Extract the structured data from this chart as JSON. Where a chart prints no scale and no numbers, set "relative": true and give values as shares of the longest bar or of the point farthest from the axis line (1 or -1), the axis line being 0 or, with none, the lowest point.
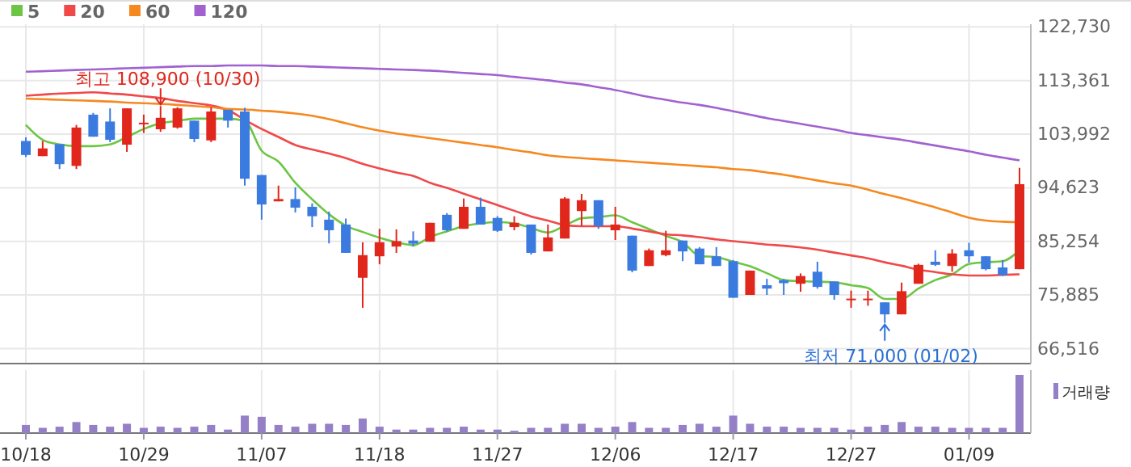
{
  "chart_data": [
    {
      "type": "candlestick",
      "legend": "top left",
      "grid": true,
      "tick_labels": "y",
      "categories": [
        null,
        null,
        null,
        null,
        null,
        null,
        null,
        null,
        null,
        null,
        null,
        null,
        null,
        null,
        null,
        null,
        null,
        null,
        null,
        null,
        null,
        null,
        null,
        null,
        null,
        null,
        null,
        null,
        null,
        null,
        null,
        null,
        null,
        null,
        null,
        null,
        null,
        null,
        null,
        null,
        null,
        null,
        null,
        null,
        null,
        null,
        null,
        null,
        null,
        null,
        null,
        null,
        null,
        null,
        null,
        null,
        null,
        null,
        null,
        null
      ],
      "ohlc": [
        [
          102800,
          103450,
          100000,
          100350
        ],
        [
          100150,
          102800,
          100150,
          101500
        ],
        [
          102250,
          102250,
          97900,
          98750
        ],
        [
          98450,
          105600,
          97900,
          105150
        ],
        [
          107400,
          107700,
          103550,
          103550
        ],
        [
          106200,
          108500,
          102600,
          103000
        ],
        [
          102150,
          108500,
          100900,
          108500
        ],
        [
          105800,
          107400,
          104200,
          106000
        ],
        [
          104850,
          108900,
          104400,
          106850
        ],
        [
          105150,
          108700,
          104950,
          108500
        ],
        [
          106350,
          106350,
          102600,
          103150
        ],
        [
          102900,
          108700,
          102600,
          107950
        ],
        [
          108250,
          108250,
          105150,
          106350
        ],
        [
          107950,
          108600,
          95000,
          96200
        ],
        [
          96850,
          96850,
          89050,
          91700
        ],
        [
          92250,
          95000,
          92250,
          92650
        ],
        [
          92650,
          94700,
          90300,
          91150
        ],
        [
          91300,
          91900,
          87750,
          89650
        ],
        [
          89050,
          90450,
          84900,
          87200
        ],
        [
          88200,
          89250,
          83250,
          83250
        ],
        [
          78900,
          85100,
          73650,
          82850
        ],
        [
          82650,
          87450,
          81250,
          85100
        ],
        [
          84350,
          87350,
          83250,
          85300
        ],
        [
          85400,
          87000,
          84350,
          84850
        ],
        [
          85200,
          88500,
          85200,
          88500
        ],
        [
          89900,
          90200,
          87000,
          87200
        ],
        [
          87450,
          92750,
          87450,
          91300
        ],
        [
          91300,
          92900,
          88200,
          88200
        ],
        [
          89350,
          89650,
          86900,
          87100
        ],
        [
          87750,
          89650,
          87200,
          88500
        ],
        [
          88200,
          88200,
          82950,
          83250
        ],
        [
          83500,
          88200,
          83500,
          85950
        ],
        [
          85750,
          93000,
          85750,
          92750
        ],
        [
          90550,
          93550,
          87950,
          92450
        ],
        [
          92450,
          92450,
          87450,
          87950
        ],
        [
          87200,
          91300,
          85500,
          88200
        ],
        [
          86250,
          86250,
          79850,
          80150
        ],
        [
          80950,
          84000,
          80950,
          83700
        ],
        [
          82850,
          87100,
          82650,
          83700
        ],
        [
          85400,
          85400,
          81800,
          83500
        ],
        [
          84000,
          84250,
          81250,
          81250
        ],
        [
          82650,
          84250,
          80950,
          80950
        ],
        [
          81800,
          82000,
          75400,
          75400
        ],
        [
          75900,
          80150,
          75900,
          80150
        ],
        [
          77600,
          78700,
          75900,
          77000
        ],
        [
          78450,
          78700,
          75900,
          77950
        ],
        [
          77850,
          79650,
          76450,
          79200
        ],
        [
          79950,
          81700,
          77000,
          77300
        ],
        [
          78250,
          78250,
          75050,
          75900
        ],
        [
          75050,
          76650,
          73650,
          75250
        ],
        [
          75050,
          76650,
          74000,
          75250
        ],
        [
          74600,
          74600,
          71000,
          72500
        ],
        [
          72500,
          78050,
          72500,
          76550
        ],
        [
          77850,
          81350,
          77850,
          81150
        ],
        [
          81700,
          83700,
          80950,
          81150
        ],
        [
          80950,
          83900,
          79950,
          83150
        ],
        [
          83700,
          85000,
          81550,
          82650
        ],
        [
          82650,
          82650,
          80200,
          80400
        ],
        [
          80700,
          82000,
          79200,
          79350
        ],
        [
          80400,
          98100,
          80400,
          95250
        ]
      ],
      "colors": [
        "#3b7be0",
        "#e1261c",
        "#3b7be0",
        "#e1261c",
        "#3b7be0",
        "#3b7be0",
        "#e1261c",
        "#e1261c",
        "#e1261c",
        "#e1261c",
        "#3b7be0",
        "#e1261c",
        "#3b7be0",
        "#3b7be0",
        "#3b7be0",
        "#e1261c",
        "#3b7be0",
        "#3b7be0",
        "#3b7be0",
        "#3b7be0",
        "#e1261c",
        "#e1261c",
        "#e1261c",
        "#3b7be0",
        "#e1261c",
        "#3b7be0",
        "#e1261c",
        "#3b7be0",
        "#3b7be0",
        "#e1261c",
        "#3b7be0",
        "#e1261c",
        "#e1261c",
        "#e1261c",
        "#3b7be0",
        "#e1261c",
        "#3b7be0",
        "#e1261c",
        "#e1261c",
        "#3b7be0",
        "#3b7be0",
        "#3b7be0",
        "#3b7be0",
        "#e1261c",
        "#3b7be0",
        "#3b7be0",
        "#e1261c",
        "#3b7be0",
        "#3b7be0",
        "#e1261c",
        "#e1261c",
        "#3b7be0",
        "#e1261c",
        "#e1261c",
        "#3b7be0",
        "#e1261c",
        "#3b7be0",
        "#3b7be0",
        "#3b7be0",
        "#e1261c"
      ],
      "series": [
        {
          "name": "5",
          "type": "line",
          "color": "#6cc644",
          "values": [
            105600,
            103000,
            102200,
            101900,
            101900,
            102200,
            103500,
            104900,
            105900,
            106300,
            106700,
            106700,
            106700,
            106300,
            101100,
            99200,
            95500,
            92600,
            90000,
            88000,
            86900,
            85900,
            85100,
            84600,
            86000,
            87000,
            87900,
            88400,
            88600,
            88400,
            87600,
            86800,
            88000,
            89300,
            89500,
            89800,
            88600,
            87400,
            86200,
            85100,
            82700,
            82500,
            81700,
            80900,
            79700,
            78500,
            78300,
            78200,
            78100,
            77600,
            77100,
            75200,
            75200,
            77000,
            78500,
            79500,
            81300,
            81600,
            81800,
            83700
          ]
        },
        {
          "name": "20",
          "type": "line",
          "color": "#f0494a",
          "values": [
            110700,
            110900,
            111100,
            111200,
            111300,
            111100,
            110900,
            110600,
            110300,
            109800,
            109400,
            109000,
            108200,
            106500,
            104900,
            103500,
            102100,
            101300,
            100600,
            99800,
            98800,
            98000,
            97300,
            96700,
            95500,
            94600,
            93600,
            92600,
            91600,
            90600,
            89600,
            88900,
            88100,
            87900,
            87900,
            87900,
            87500,
            87000,
            86500,
            86300,
            86000,
            85600,
            85300,
            85000,
            84700,
            84500,
            84200,
            83800,
            83300,
            82800,
            82300,
            81600,
            81000,
            80300,
            79900,
            79500,
            79300,
            79300,
            79400,
            79500
          ]
        },
        {
          "name": "60",
          "type": "line",
          "color": "#f5891f",
          "values": [
            110200,
            110100,
            110000,
            109900,
            109800,
            109700,
            109500,
            109400,
            109300,
            109100,
            108900,
            108700,
            108400,
            108300,
            108100,
            107900,
            107600,
            107200,
            106600,
            105900,
            105200,
            104600,
            104100,
            103700,
            103300,
            102900,
            102500,
            102100,
            101700,
            101200,
            100800,
            100300,
            100000,
            99800,
            99600,
            99400,
            99200,
            99000,
            98800,
            98600,
            98400,
            98200,
            97900,
            97700,
            97300,
            96900,
            96400,
            95900,
            95400,
            95000,
            94300,
            93500,
            92800,
            92000,
            91200,
            90300,
            89400,
            88900,
            88700,
            88600
          ]
        },
        {
          "name": "120",
          "type": "line",
          "color": "#a162d0",
          "values": [
            114900,
            115000,
            115100,
            115200,
            115300,
            115400,
            115500,
            115600,
            115700,
            115800,
            115900,
            115900,
            116000,
            116000,
            116000,
            115900,
            115900,
            115800,
            115700,
            115600,
            115500,
            115400,
            115300,
            115200,
            115100,
            114900,
            114700,
            114500,
            114300,
            114000,
            113700,
            113400,
            113000,
            112700,
            112200,
            111700,
            111100,
            110500,
            110000,
            109500,
            109100,
            108600,
            108000,
            107400,
            106800,
            106300,
            105800,
            105300,
            104800,
            104200,
            103800,
            103400,
            103000,
            102500,
            102000,
            101500,
            101000,
            100400,
            99900,
            99400
          ]
        }
      ],
      "ylim": [
        63900,
        123200
      ],
      "yticks": [
        {
          "value": 122730,
          "label": "122,730"
        },
        {
          "value": 113361,
          "label": "113,361"
        },
        {
          "value": 103992,
          "label": "103,992"
        },
        {
          "value": 94623,
          "label": "94,623"
        },
        {
          "value": 85254,
          "label": "85,254"
        },
        {
          "value": 75885,
          "label": "75,885"
        },
        {
          "value": 66516,
          "label": "66,516"
        }
      ],
      "annotations": [
        "최고 108,900 (10/30)",
        "최저 71,000 (01/02)"
      ]
    },
    {
      "type": "bar",
      "relative": true,
      "legend": "top right",
      "grid": "x",
      "tick_labels": "x",
      "categories": [
        "10/18",
        null,
        null,
        null,
        null,
        null,
        null,
        "10/29",
        null,
        null,
        null,
        null,
        null,
        null,
        "11/07",
        null,
        null,
        null,
        null,
        null,
        null,
        "11/18",
        null,
        null,
        null,
        null,
        null,
        null,
        "11/27",
        null,
        null,
        null,
        null,
        null,
        null,
        "12/06",
        null,
        null,
        null,
        null,
        null,
        null,
        "12/17",
        null,
        null,
        null,
        null,
        null,
        null,
        "12/27",
        null,
        null,
        null,
        null,
        null,
        null,
        "01/09",
        null,
        null,
        null
      ],
      "series": [
        {
          "name": "거래량",
          "color": "#9580c8",
          "values": [
            0.14,
            0.09,
            0.11,
            0.19,
            0.14,
            0.11,
            0.16,
            0.09,
            0.11,
            0.09,
            0.11,
            0.14,
            0.06,
            0.3,
            0.28,
            0.14,
            0.11,
            0.16,
            0.16,
            0.14,
            0.25,
            0.11,
            0.06,
            0.06,
            0.09,
            0.09,
            0.11,
            0.06,
            0.06,
            0.04,
            0.09,
            0.09,
            0.16,
            0.16,
            0.09,
            0.11,
            0.19,
            0.09,
            0.09,
            0.14,
            0.16,
            0.11,
            0.3,
            0.16,
            0.11,
            0.11,
            0.09,
            0.09,
            0.09,
            0.06,
            0.11,
            0.14,
            0.19,
            0.11,
            0.11,
            0.09,
            0.09,
            0.09,
            0.09,
            1
          ]
        }
      ]
    }
  ]
}
